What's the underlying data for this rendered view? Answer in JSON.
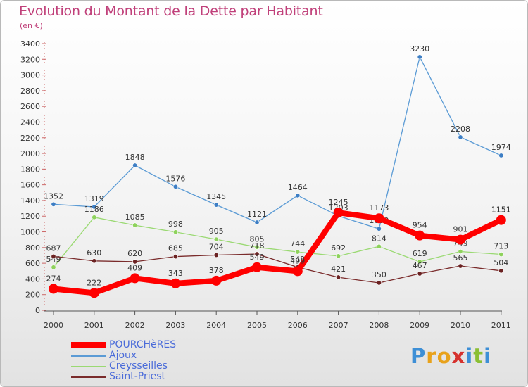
{
  "title": "Evolution du Montant de la Dette par Habitant",
  "subtitle": "(en €)",
  "logo": {
    "text": "Proxiti",
    "letters": [
      {
        "ch": "P",
        "color": "#3d8fd6"
      },
      {
        "ch": "r",
        "color": "#e8a21c"
      },
      {
        "ch": "o",
        "color": "#e8a21c"
      },
      {
        "ch": "x",
        "color": "#d6322e"
      },
      {
        "ch": "i",
        "color": "#3d8fd6"
      },
      {
        "ch": "t",
        "color": "#8bbf34"
      },
      {
        "ch": "i",
        "color": "#3d8fd6"
      }
    ]
  },
  "chart_data": {
    "type": "line",
    "title": "Evolution du Montant de la Dette par Habitant",
    "subtitle": "(en €)",
    "xlabel": "",
    "ylabel": "",
    "x": [
      "2000",
      "2001",
      "2002",
      "2003",
      "2004",
      "2005",
      "2006",
      "2007",
      "2008",
      "2009",
      "2010",
      "2011"
    ],
    "ylim": [
      0,
      3400
    ],
    "yticks": [
      0,
      200,
      400,
      600,
      800,
      1000,
      1200,
      1400,
      1600,
      1800,
      2000,
      2200,
      2400,
      2600,
      2800,
      3000,
      3200,
      3400
    ],
    "grid": false,
    "legend_position": "bottom-left",
    "series": [
      {
        "name": "Ajoux",
        "color": "#5b9bd5",
        "values": [
          1352,
          1319,
          1848,
          1576,
          1345,
          1121,
          1464,
          1203,
          1039,
          3230,
          2208,
          1974
        ]
      },
      {
        "name": "Creysseilles",
        "color": "#9ad972",
        "values": [
          549,
          1186,
          1085,
          998,
          905,
          805,
          744,
          692,
          814,
          619,
          749,
          713
        ]
      },
      {
        "name": "Saint-Priest",
        "color": "#7a2b2b",
        "values": [
          687,
          630,
          620,
          685,
          704,
          718,
          549,
          421,
          350,
          467,
          565,
          504
        ]
      },
      {
        "name": "POURCHèRES",
        "color": "#ff0000",
        "values": [
          274,
          222,
          409,
          343,
          378,
          549,
          499,
          1245,
          1173,
          954,
          901,
          1151
        ]
      }
    ],
    "legend_order": [
      "POURCHèRES",
      "Ajoux",
      "Creysseilles",
      "Saint-Priest"
    ]
  }
}
